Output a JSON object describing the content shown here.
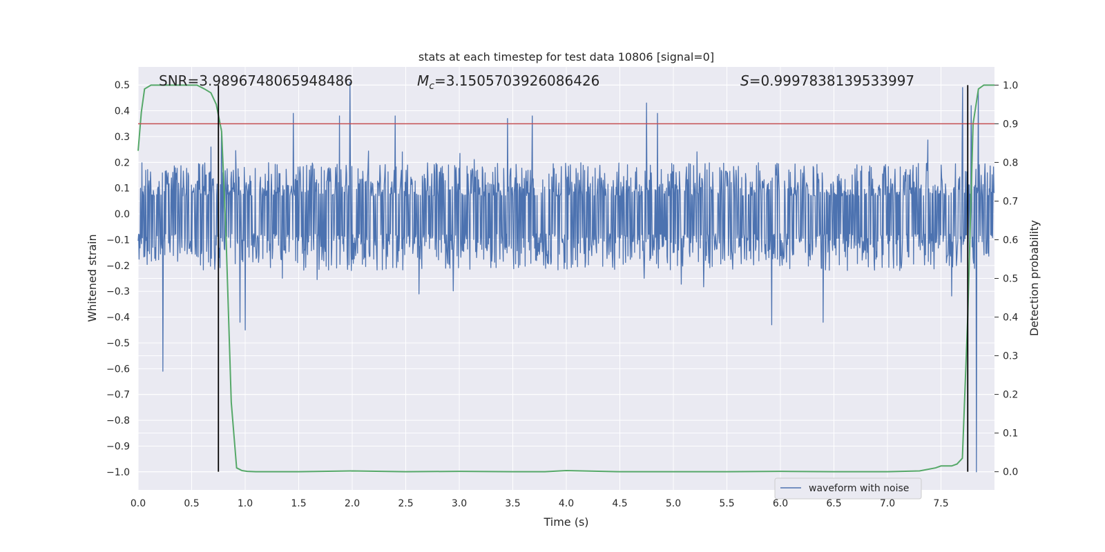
{
  "chart_data": {
    "type": "line",
    "title": "stats at each timestep for test data 10806 [signal=0]",
    "xlabel": "Time (s)",
    "ylabel": "Whitened strain",
    "y2label": "Detection probability",
    "xlim": [
      0.0,
      8.0
    ],
    "ylim": [
      -1.07,
      0.57
    ],
    "y2lim": [
      -0.047,
      1.047
    ],
    "xticks": [
      "0.0",
      "0.5",
      "1.0",
      "1.5",
      "2.0",
      "2.5",
      "3.0",
      "3.5",
      "4.0",
      "4.5",
      "5.0",
      "5.5",
      "6.0",
      "6.5",
      "7.0",
      "7.5"
    ],
    "yticks": [
      "0.5",
      "0.4",
      "0.3",
      "0.2",
      "0.1",
      "0.0",
      "−0.1",
      "−0.2",
      "−0.3",
      "−0.4",
      "−0.5",
      "−0.6",
      "−0.7",
      "−0.8",
      "−0.9",
      "−1.0"
    ],
    "y2ticks": [
      "1.0",
      "0.9",
      "0.8",
      "0.7",
      "0.6",
      "0.5",
      "0.4",
      "0.3",
      "0.2",
      "0.1",
      "0.0"
    ],
    "annotations": {
      "snr": "SNR=3.9896748065948486",
      "mc_symbol": "M",
      "mc_sub": "c",
      "mc_value": "=3.1505703926086426",
      "s_symbol": "S",
      "s_value": "=0.9997838139533997"
    },
    "legend": {
      "label": "waveform with noise",
      "position": "lower-right"
    },
    "threshold_y2": 0.9,
    "vlines_x": [
      0.75,
      7.75
    ],
    "series": [
      {
        "name": "waveform with noise",
        "color": "#4c72b0",
        "typical_range": [
          -0.22,
          0.2
        ],
        "peaks": [
          {
            "x": 0.23,
            "y": -0.61
          },
          {
            "x": 0.78,
            "y": 0.33
          },
          {
            "x": 0.95,
            "y": -0.42
          },
          {
            "x": 1.0,
            "y": -0.45
          },
          {
            "x": 1.45,
            "y": 0.39
          },
          {
            "x": 1.88,
            "y": 0.38
          },
          {
            "x": 1.98,
            "y": 0.51
          },
          {
            "x": 2.4,
            "y": 0.38
          },
          {
            "x": 3.45,
            "y": 0.37
          },
          {
            "x": 3.68,
            "y": 0.38
          },
          {
            "x": 4.75,
            "y": 0.43
          },
          {
            "x": 4.85,
            "y": 0.39
          },
          {
            "x": 5.92,
            "y": -0.43
          },
          {
            "x": 6.4,
            "y": -0.42
          },
          {
            "x": 7.7,
            "y": 0.49
          },
          {
            "x": 7.78,
            "y": 0.42
          },
          {
            "x": 7.83,
            "y": -1.0
          },
          {
            "x": 7.85,
            "y": 0.48
          }
        ]
      },
      {
        "name": "detection probability",
        "axis": "right",
        "color": "#55a868",
        "x": [
          0.0,
          0.03,
          0.06,
          0.12,
          0.2,
          0.4,
          0.55,
          0.62,
          0.68,
          0.73,
          0.78,
          0.82,
          0.87,
          0.92,
          0.97,
          1.02,
          1.1,
          1.5,
          2.0,
          2.5,
          3.0,
          3.5,
          3.8,
          4.0,
          4.5,
          5.0,
          5.5,
          6.0,
          6.5,
          7.0,
          7.3,
          7.45,
          7.5,
          7.6,
          7.65,
          7.7,
          7.75,
          7.8,
          7.85,
          7.9,
          7.95,
          8.0
        ],
        "y": [
          0.83,
          0.93,
          0.99,
          1.0,
          1.0,
          1.0,
          1.0,
          0.99,
          0.98,
          0.95,
          0.88,
          0.62,
          0.18,
          0.01,
          0.003,
          0.001,
          0.0,
          0.0,
          0.002,
          0.0,
          0.001,
          0.0,
          0.0,
          0.003,
          0.0,
          0.0,
          0.0,
          0.001,
          0.0,
          0.0,
          0.002,
          0.01,
          0.015,
          0.015,
          0.02,
          0.035,
          0.4,
          0.9,
          0.99,
          1.0,
          1.0,
          1.0
        ]
      },
      {
        "name": "threshold",
        "axis": "right",
        "color": "#c44e52",
        "y": 0.9
      }
    ]
  }
}
